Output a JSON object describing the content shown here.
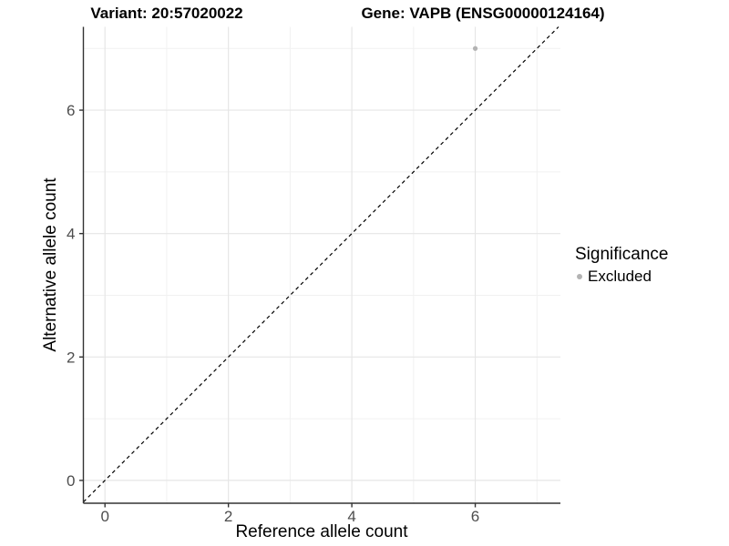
{
  "titles": {
    "variant": "Variant: 20:57020022",
    "gene": "Gene: VAPB (ENSG00000124164)"
  },
  "legend": {
    "title": "Significance",
    "items": [
      {
        "label": "Excluded",
        "color": "#b3b3b3"
      }
    ]
  },
  "chart_data": {
    "type": "scatter",
    "title": "Variant: 20:57020022 — Gene: VAPB (ENSG00000124164)",
    "xlabel": "Reference allele count",
    "ylabel": "Alternative allele count",
    "xlim": [
      -0.35,
      7.38
    ],
    "ylim": [
      -0.37,
      7.35
    ],
    "x_ticks": [
      0,
      2,
      4,
      6
    ],
    "y_ticks": [
      0,
      2,
      4,
      6
    ],
    "x_minor_ticks": [
      1,
      3,
      5,
      7
    ],
    "y_minor_ticks": [
      1,
      3,
      5,
      7
    ],
    "grid": true,
    "legend_position": "right",
    "series": [
      {
        "name": "Excluded",
        "color": "#b3b3b3",
        "points": [
          {
            "x": 6,
            "y": 7
          }
        ]
      }
    ],
    "identity_line": {
      "slope": 1,
      "intercept": 0,
      "style": "dashed",
      "color": "#000000"
    }
  },
  "colors": {
    "axis_line": "#333333",
    "tick_label": "#4d4d4d",
    "grid_major": "#e6e6e6",
    "grid_minor": "#f1f1f1",
    "background": "#ffffff"
  }
}
